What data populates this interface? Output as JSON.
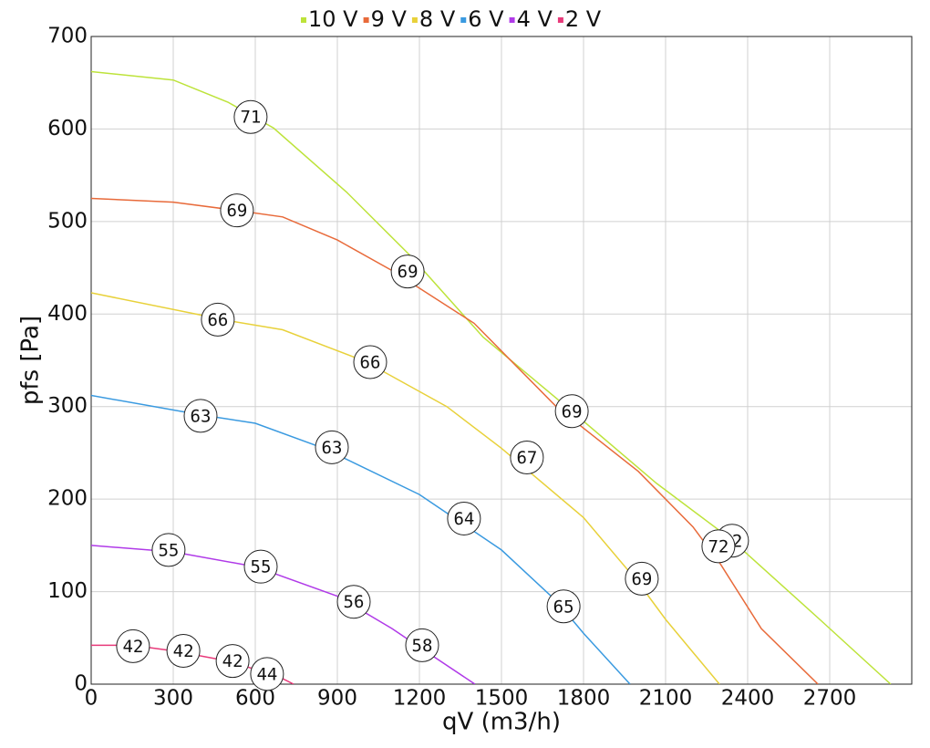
{
  "chart_data": {
    "type": "line",
    "x_label": "qV (m3/h)",
    "y_label": "pfs [Pa]",
    "xlim": [
      0,
      3000
    ],
    "xticks": [
      0,
      300,
      600,
      900,
      1200,
      1500,
      1800,
      2100,
      2400,
      2700
    ],
    "ylim": [
      0,
      700
    ],
    "yticks": [
      0,
      100,
      200,
      300,
      400,
      500,
      600,
      700
    ],
    "grid": true,
    "legend": "top",
    "series": [
      {
        "name": "10 V",
        "color": "#bde33a",
        "x": [
          0,
          300,
          500,
          667,
          933,
          1167,
          1433,
          1733,
          2067,
          2333,
          2667,
          2923
        ],
        "y": [
          662,
          653,
          629,
          601,
          532,
          463,
          375,
          301,
          217,
          158,
          69,
          0
        ],
        "labels": [
          {
            "x": 583,
            "y": 613,
            "text": "71"
          },
          {
            "x": 2343,
            "y": 155,
            "text": "72"
          }
        ]
      },
      {
        "name": "9 V",
        "color": "#e86a3a",
        "x": [
          0,
          300,
          533,
          700,
          900,
          1100,
          1400,
          1700,
          2000,
          2200,
          2300,
          2450,
          2657
        ],
        "y": [
          525,
          521,
          512,
          505,
          480,
          447,
          390,
          300,
          230,
          170,
          130,
          60,
          0
        ],
        "labels": [
          {
            "x": 533,
            "y": 512,
            "text": "69"
          },
          {
            "x": 1157,
            "y": 446,
            "text": "69"
          },
          {
            "x": 1757,
            "y": 295,
            "text": "69"
          },
          {
            "x": 2293,
            "y": 149,
            "text": "72"
          }
        ]
      },
      {
        "name": "8 V",
        "color": "#e8d13a",
        "x": [
          0,
          500,
          700,
          1000,
          1300,
          1500,
          1800,
          2000,
          2100,
          2297
        ],
        "y": [
          423,
          393,
          383,
          349,
          300,
          255,
          180,
          110,
          70,
          0
        ],
        "labels": [
          {
            "x": 463,
            "y": 394,
            "text": "66"
          },
          {
            "x": 1020,
            "y": 348,
            "text": "66"
          },
          {
            "x": 1593,
            "y": 245,
            "text": "67"
          },
          {
            "x": 2013,
            "y": 114,
            "text": "69"
          }
        ]
      },
      {
        "name": "6 V",
        "color": "#3a9ae0",
        "x": [
          0,
          400,
          600,
          850,
          1200,
          1500,
          1700,
          1800,
          1970
        ],
        "y": [
          312,
          291,
          282,
          255,
          205,
          145,
          90,
          55,
          0
        ],
        "labels": [
          {
            "x": 400,
            "y": 290,
            "text": "63"
          },
          {
            "x": 880,
            "y": 256,
            "text": "63"
          },
          {
            "x": 1363,
            "y": 179,
            "text": "64"
          },
          {
            "x": 1727,
            "y": 84,
            "text": "65"
          }
        ]
      },
      {
        "name": "4 V",
        "color": "#b03ae8",
        "x": [
          0,
          300,
          600,
          900,
          1100,
          1200,
          1403
        ],
        "y": [
          150,
          143,
          127,
          95,
          60,
          40,
          0
        ],
        "labels": [
          {
            "x": 283,
            "y": 145,
            "text": "55"
          },
          {
            "x": 620,
            "y": 127,
            "text": "55"
          },
          {
            "x": 960,
            "y": 89,
            "text": "56"
          },
          {
            "x": 1210,
            "y": 42,
            "text": "58"
          }
        ]
      },
      {
        "name": "2 V",
        "color": "#e83a7a",
        "x": [
          0,
          150,
          300,
          500,
          600,
          700,
          740
        ],
        "y": [
          42,
          42,
          36,
          25,
          16,
          6,
          0
        ],
        "labels": [
          {
            "x": 153,
            "y": 41,
            "text": "42"
          },
          {
            "x": 337,
            "y": 36,
            "text": "42"
          },
          {
            "x": 517,
            "y": 25,
            "text": "42"
          },
          {
            "x": 643,
            "y": 11,
            "text": "44"
          }
        ]
      }
    ]
  }
}
